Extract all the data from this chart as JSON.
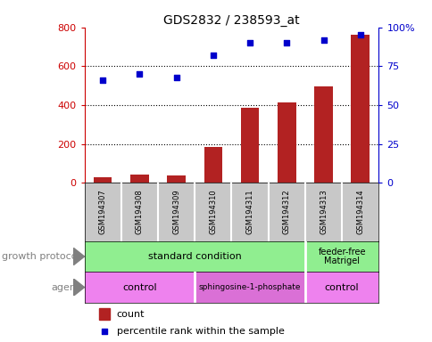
{
  "title": "GDS2832 / 238593_at",
  "samples": [
    "GSM194307",
    "GSM194308",
    "GSM194309",
    "GSM194310",
    "GSM194311",
    "GSM194312",
    "GSM194313",
    "GSM194314"
  ],
  "counts": [
    30,
    45,
    38,
    185,
    385,
    415,
    495,
    760
  ],
  "percentiles": [
    66,
    70,
    68,
    82,
    90,
    90,
    92,
    95
  ],
  "ylim_left": [
    0,
    800
  ],
  "ylim_right": [
    0,
    100
  ],
  "yticks_left": [
    0,
    200,
    400,
    600,
    800
  ],
  "yticks_right": [
    0,
    25,
    50,
    75,
    100
  ],
  "ytick_labels_right": [
    "0",
    "25",
    "50",
    "75",
    "100%"
  ],
  "bar_color": "#B22222",
  "dot_color": "#0000CC",
  "ax_left_color": "#CC0000",
  "ax_right_color": "#0000CC",
  "cell_bg_color": "#C8C8C8",
  "growth_color": "#90EE90",
  "agent_color_light": "#EE82EE",
  "agent_color_dark": "#DA70D6",
  "label_color": "#808080"
}
